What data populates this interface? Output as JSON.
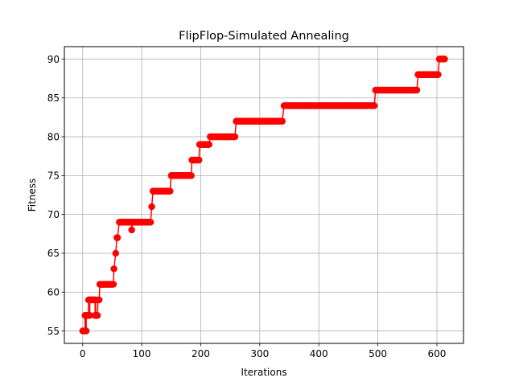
{
  "chart_data": {
    "type": "line",
    "title": "FlipFlop-Simulated Annealing",
    "xlabel": "Iterations",
    "ylabel": "Fitness",
    "xlim": [
      -31,
      645
    ],
    "ylim": [
      53.4,
      91.6
    ],
    "xticks": [
      0,
      100,
      200,
      300,
      400,
      500,
      600
    ],
    "yticks": [
      55,
      60,
      65,
      70,
      75,
      80,
      85,
      90
    ],
    "grid": true,
    "legend": "none",
    "series": [
      {
        "color": "#ff0000",
        "marker": "circle",
        "segments": [
          [
            0,
            6,
            55
          ],
          [
            4,
            12,
            57
          ],
          [
            10,
            22,
            59
          ],
          [
            21,
            25,
            57
          ],
          [
            26,
            28,
            59
          ],
          [
            29,
            52,
            61
          ],
          [
            53,
            53,
            63
          ],
          [
            56,
            56,
            65
          ],
          [
            58,
            59,
            67
          ],
          [
            62,
            115,
            69
          ],
          [
            83,
            83,
            68
          ],
          [
            117,
            117,
            71
          ],
          [
            119,
            148,
            73
          ],
          [
            150,
            184,
            75
          ],
          [
            185,
            197,
            77
          ],
          [
            198,
            214,
            79
          ],
          [
            216,
            258,
            80
          ],
          [
            260,
            338,
            82
          ],
          [
            341,
            494,
            84
          ],
          [
            496,
            566,
            86
          ],
          [
            568,
            602,
            88
          ],
          [
            604,
            613,
            90
          ]
        ]
      }
    ]
  }
}
